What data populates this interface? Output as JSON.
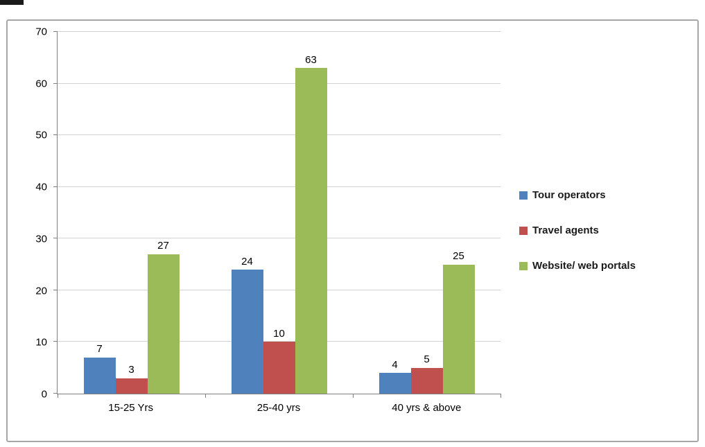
{
  "chart_data": {
    "type": "bar",
    "title": "",
    "xlabel": "",
    "ylabel": "",
    "categories": [
      "15-25 Yrs",
      "25-40 yrs",
      "40 yrs & above"
    ],
    "series": [
      {
        "name": "Tour operators",
        "color": "#4F81BD",
        "values": [
          7,
          24,
          4
        ]
      },
      {
        "name": "Travel agents",
        "color": "#C0504D",
        "values": [
          3,
          10,
          5
        ]
      },
      {
        "name": "Website/ web portals",
        "color": "#9BBB59",
        "values": [
          27,
          63,
          25
        ]
      }
    ],
    "ylim": [
      0,
      70
    ],
    "yticks": [
      0,
      10,
      20,
      30,
      40,
      50,
      60,
      70
    ],
    "grid": true,
    "data_labels": true,
    "legend_position": "right"
  }
}
